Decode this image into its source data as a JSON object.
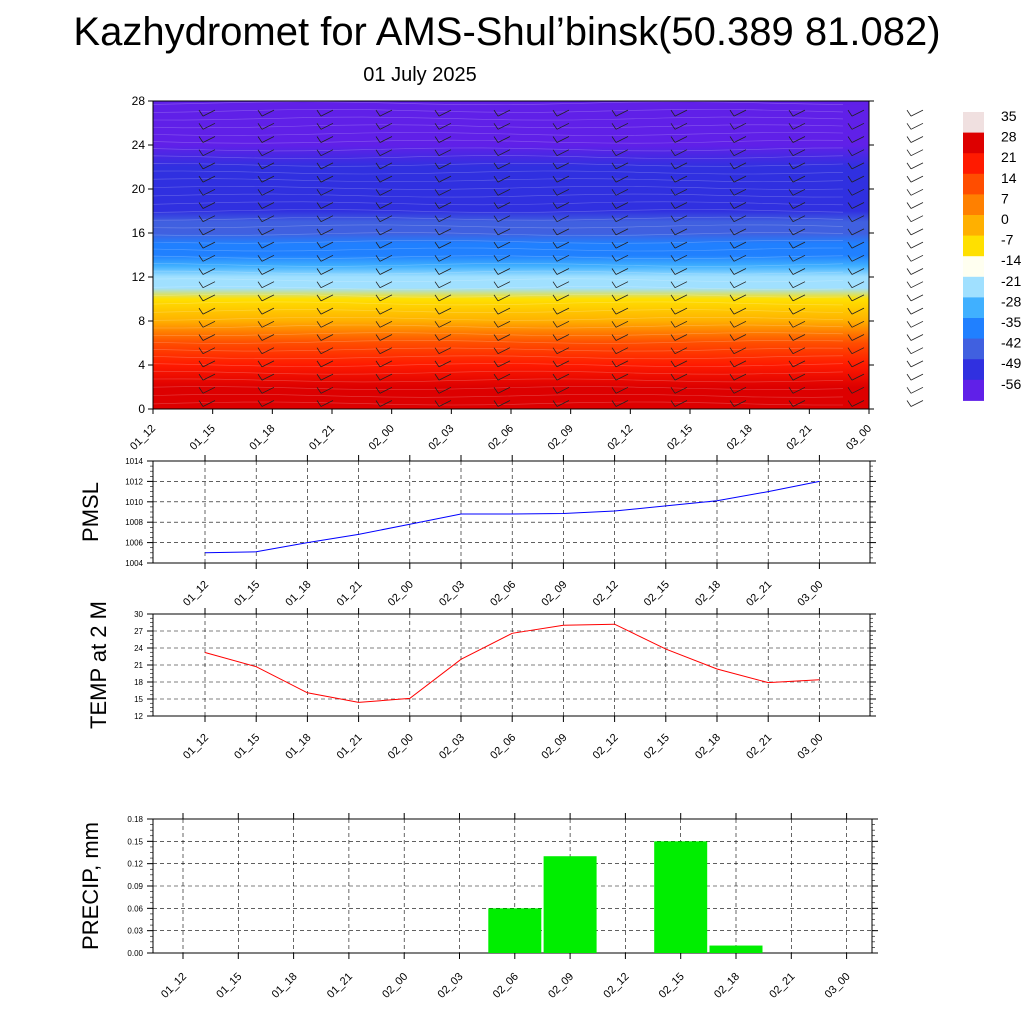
{
  "title": "Kazhydromet for AMS-Shul’binsk(50.389 81.082)",
  "subtitle": "01 July 2025",
  "time_labels": [
    "01_12",
    "01_15",
    "01_18",
    "01_21",
    "02_00",
    "02_03",
    "02_06",
    "02_09",
    "02_12",
    "02_15",
    "02_18",
    "02_21",
    "03_00"
  ],
  "colorbar": {
    "labels": [
      "35",
      "28",
      "21",
      "14",
      "7",
      "0",
      "-7",
      "-14",
      "-21",
      "-28",
      "-35",
      "-42",
      "-49",
      "-56"
    ],
    "colors": [
      "#f0e0e0",
      "#dd0000",
      "#ff1a00",
      "#ff4d00",
      "#ff8000",
      "#ffb000",
      "#ffe000",
      "#fffff0",
      "#a0e0ff",
      "#40b0ff",
      "#2080ff",
      "#4060e0",
      "#3030e0",
      "#6020e8"
    ]
  },
  "colors": {
    "pmsl_line": "#0000ff",
    "temp_line": "#ff0000",
    "precip_bar": "#00ee00"
  },
  "chart_data": [
    {
      "type": "heatmap",
      "title": "",
      "xlabel": "",
      "ylabel": "",
      "x": [
        "01_12",
        "01_15",
        "01_18",
        "01_21",
        "02_00",
        "02_03",
        "02_06",
        "02_09",
        "02_12",
        "02_15",
        "02_18",
        "02_21",
        "03_00"
      ],
      "ylim": [
        0,
        28
      ],
      "yticks": [
        0,
        4,
        8,
        12,
        16,
        20,
        24,
        28
      ],
      "colorbar_range": [
        -56,
        35
      ],
      "note_levels": [
        0,
        2,
        4,
        6,
        8,
        10,
        11,
        12,
        13,
        14,
        15,
        16,
        17,
        18,
        20,
        22,
        24,
        26,
        28
      ],
      "profile_temperature": [
        30,
        26,
        20,
        12,
        2,
        -10,
        -18,
        -22,
        -28,
        -34,
        -38,
        -40,
        -42,
        -48,
        -50,
        -52,
        -53,
        -55,
        -56
      ]
    },
    {
      "type": "line",
      "title": "",
      "ylabel": "PMSL",
      "x": [
        "01_12",
        "01_15",
        "01_18",
        "01_21",
        "02_00",
        "02_03",
        "02_06",
        "02_09",
        "02_12",
        "02_15",
        "02_18",
        "02_21",
        "03_00"
      ],
      "values": [
        1005.0,
        1005.1,
        1006.0,
        1006.8,
        1007.8,
        1008.8,
        1008.8,
        1008.85,
        1009.1,
        1009.6,
        1010.1,
        1011.0,
        1012.0
      ],
      "ylim": [
        1004,
        1014
      ],
      "yticks": [
        1004,
        1006,
        1008,
        1010,
        1012,
        1014
      ],
      "grid": true
    },
    {
      "type": "line",
      "title": "",
      "ylabel": "TEMP at 2 M",
      "x": [
        "01_12",
        "01_15",
        "01_18",
        "01_21",
        "02_00",
        "02_03",
        "02_06",
        "02_09",
        "02_12",
        "02_15",
        "02_18",
        "02_21",
        "03_00"
      ],
      "values": [
        23.2,
        20.7,
        16.1,
        14.4,
        15.1,
        22.0,
        26.6,
        28.0,
        28.2,
        23.8,
        20.3,
        17.9,
        18.4
      ],
      "ylim": [
        12,
        30
      ],
      "yticks": [
        12,
        15,
        18,
        21,
        24,
        27,
        30
      ],
      "grid": true
    },
    {
      "type": "bar",
      "title": "",
      "ylabel": "PRECIP, mm",
      "x": [
        "01_12",
        "01_15",
        "01_18",
        "01_21",
        "02_00",
        "02_03",
        "02_06",
        "02_09",
        "02_12",
        "02_15",
        "02_18",
        "02_21",
        "03_00"
      ],
      "values": [
        0,
        0,
        0,
        0,
        0,
        0,
        0.06,
        0.13,
        0,
        0.15,
        0.01,
        0,
        0
      ],
      "ylim": [
        0,
        0.18
      ],
      "yticks": [
        "0.00",
        "0.03",
        "0.06",
        "0.09",
        "0.12",
        "0.15",
        "0.18"
      ],
      "grid": true
    }
  ]
}
